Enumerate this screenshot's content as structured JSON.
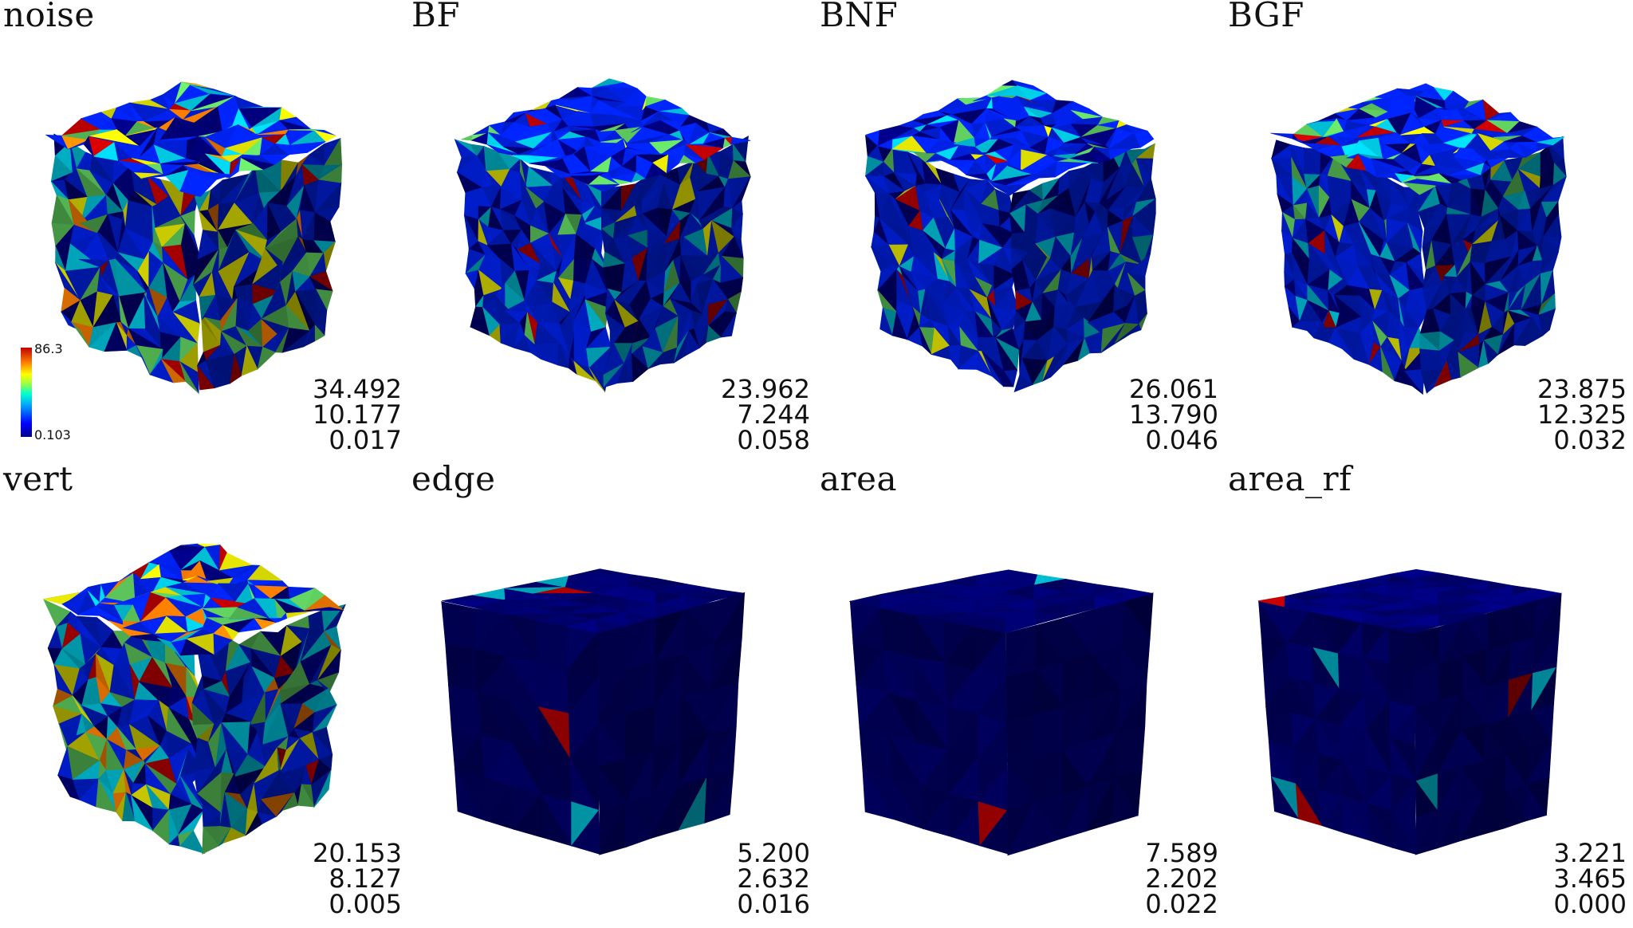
{
  "panels": [
    {
      "title": "noise",
      "stats": [
        "34.492",
        "10.177",
        "0.017"
      ],
      "style": "noisy",
      "palette": "bright"
    },
    {
      "title": "BF",
      "stats": [
        "23.962",
        "7.244",
        "0.058"
      ],
      "style": "rounded",
      "palette": "blue"
    },
    {
      "title": "BNF",
      "stats": [
        "26.061",
        "13.790",
        "0.046"
      ],
      "style": "rounded",
      "palette": "blue"
    },
    {
      "title": "BGF",
      "stats": [
        "23.875",
        "12.325",
        "0.032"
      ],
      "style": "rounded",
      "palette": "blue"
    },
    {
      "title": "vert",
      "stats": [
        "20.153",
        "8.127",
        "0.005"
      ],
      "style": "noisy",
      "palette": "bright"
    },
    {
      "title": "edge",
      "stats": [
        "5.200",
        "2.632",
        "0.016"
      ],
      "style": "smooth",
      "palette": "dark"
    },
    {
      "title": "area",
      "stats": [
        "7.589",
        "2.202",
        "0.022"
      ],
      "style": "smooth",
      "palette": "dark"
    },
    {
      "title": "area_rf",
      "stats": [
        "3.221",
        "3.465",
        "0.000"
      ],
      "style": "bulged",
      "palette": "dark"
    }
  ],
  "legend": {
    "max": "86.3",
    "min": "0.103"
  },
  "colors": {
    "navy": "#00007a",
    "blue": "#0022ee",
    "cyan": "#00c8e0",
    "green": "#60d060",
    "yellow": "#f0f000",
    "orange": "#ff8000",
    "red": "#c00000"
  }
}
